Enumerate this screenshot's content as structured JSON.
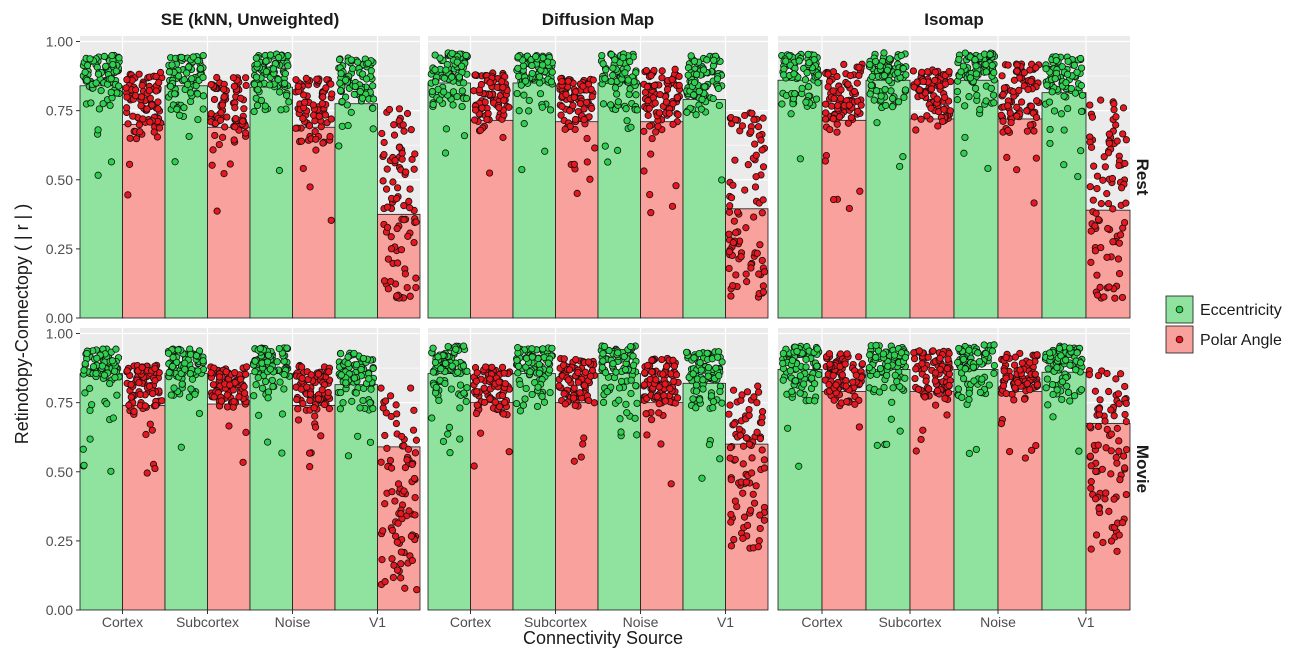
{
  "figure": {
    "ylabel": "Retinotopy-Connectopy ( | r | )",
    "xlabel": "Connectivity Source",
    "colors": {
      "panel_bg": "#ebebeb",
      "grid": "#ffffff",
      "ecc_fill": "#90e39f",
      "polar_fill": "#f9a19d",
      "ecc_point": "#2ed14f",
      "polar_point": "#e8161e",
      "outline": "#1a1a1a"
    }
  },
  "legend": {
    "position": "right",
    "items": [
      {
        "label": "Eccentricity",
        "color": "#2ed14f",
        "fill": "#90e39f"
      },
      {
        "label": "Polar Angle",
        "color": "#e8161e",
        "fill": "#f9a19d"
      }
    ]
  },
  "facets": {
    "columns": [
      "SE (kNN, Unweighted)",
      "Diffusion Map",
      "Isomap"
    ],
    "rows": [
      "Rest",
      "Movie"
    ]
  },
  "chart_data": {
    "type": "bar",
    "categories": [
      "Cortex",
      "Subcortex",
      "Noise",
      "V1"
    ],
    "yticks": [
      "0.00",
      "0.25",
      "0.50",
      "0.75",
      "1.00"
    ],
    "ylim": [
      0,
      1.0
    ],
    "grid": true,
    "panels": [
      {
        "column": "SE (kNN, Unweighted)",
        "row": "Rest",
        "series": [
          {
            "name": "Eccentricity",
            "values": [
              0.84,
              0.84,
              0.835,
              0.775
            ],
            "min": [
              0.51,
              0.515,
              0.5,
              0.52
            ],
            "max": [
              0.95,
              0.95,
              0.955,
              0.945
            ]
          },
          {
            "name": "Polar Angle",
            "values": [
              0.7,
              0.69,
              0.69,
              0.375
            ],
            "min": [
              0.35,
              0.33,
              0.335,
              0.07
            ],
            "max": [
              0.89,
              0.87,
              0.87,
              0.76
            ]
          }
        ]
      },
      {
        "column": "Diffusion Map",
        "row": "Rest",
        "series": [
          {
            "name": "Eccentricity",
            "values": [
              0.85,
              0.85,
              0.85,
              0.79
            ],
            "min": [
              0.515,
              0.5,
              0.49,
              0.47
            ],
            "max": [
              0.96,
              0.95,
              0.955,
              0.95
            ]
          },
          {
            "name": "Polar Angle",
            "values": [
              0.715,
              0.71,
              0.71,
              0.395
            ],
            "min": [
              0.415,
              0.45,
              0.38,
              0.07
            ],
            "max": [
              0.89,
              0.87,
              0.9,
              0.76
            ]
          }
        ]
      },
      {
        "column": "Isomap",
        "row": "Rest",
        "series": [
          {
            "name": "Eccentricity",
            "values": [
              0.86,
              0.86,
              0.86,
              0.815
            ],
            "min": [
              0.53,
              0.51,
              0.53,
              0.495
            ],
            "max": [
              0.955,
              0.96,
              0.96,
              0.945
            ]
          },
          {
            "name": "Polar Angle",
            "values": [
              0.715,
              0.72,
              0.72,
              0.39
            ],
            "min": [
              0.39,
              0.43,
              0.36,
              0.06
            ],
            "max": [
              0.92,
              0.9,
              0.92,
              0.79
            ]
          }
        ]
      },
      {
        "column": "SE (kNN, Unweighted)",
        "row": "Movie",
        "series": [
          {
            "name": "Eccentricity",
            "values": [
              0.855,
              0.855,
              0.855,
              0.815
            ],
            "min": [
              0.495,
              0.54,
              0.56,
              0.46
            ],
            "max": [
              0.945,
              0.945,
              0.95,
              0.93
            ]
          },
          {
            "name": "Polar Angle",
            "values": [
              0.74,
              0.745,
              0.74,
              0.59
            ],
            "min": [
              0.49,
              0.52,
              0.515,
              0.055
            ],
            "max": [
              0.885,
              0.88,
              0.885,
              0.81
            ]
          }
        ]
      },
      {
        "column": "Diffusion Map",
        "row": "Movie",
        "series": [
          {
            "name": "Eccentricity",
            "values": [
              0.855,
              0.855,
              0.855,
              0.82
            ],
            "min": [
              0.515,
              0.475,
              0.485,
              0.46
            ],
            "max": [
              0.955,
              0.95,
              0.955,
              0.935
            ]
          },
          {
            "name": "Polar Angle",
            "values": [
              0.75,
              0.75,
              0.75,
              0.6
            ],
            "min": [
              0.485,
              0.52,
              0.435,
              0.22
            ],
            "max": [
              0.88,
              0.91,
              0.91,
              0.81
            ]
          }
        ]
      },
      {
        "column": "Isomap",
        "row": "Movie",
        "series": [
          {
            "name": "Eccentricity",
            "values": [
              0.87,
              0.87,
              0.87,
              0.86
            ],
            "min": [
              0.51,
              0.565,
              0.535,
              0.5
            ],
            "max": [
              0.955,
              0.96,
              0.96,
              0.955
            ]
          },
          {
            "name": "Polar Angle",
            "values": [
              0.79,
              0.79,
              0.79,
              0.675
            ],
            "min": [
              0.5,
              0.54,
              0.545,
              0.2
            ],
            "max": [
              0.93,
              0.94,
              0.93,
              0.875
            ]
          }
        ]
      }
    ]
  }
}
